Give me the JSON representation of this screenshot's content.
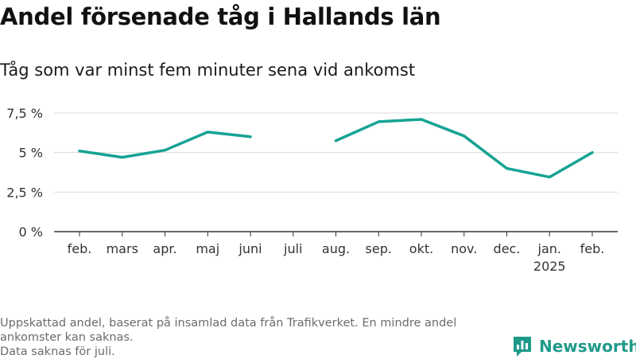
{
  "title": "Andel försenade tåg i Hallands län",
  "subtitle": "Tåg som var minst fem minuter sena vid ankomst",
  "footnote": {
    "line1": "Uppskattad andel, baserat på insamlad data från Trafikverket. En mindre andel ankomster kan saknas.",
    "line2": "Data saknas för juli."
  },
  "brand": {
    "name": "Newsworthy",
    "icon": "newsworthy-logo-icon",
    "color": "#1f9a8a"
  },
  "chart_data": {
    "type": "line",
    "categories": [
      "feb.",
      "mars",
      "apr.",
      "maj",
      "juni",
      "juli",
      "aug.",
      "sep.",
      "okt.",
      "nov.",
      "dec.",
      "jan.",
      "feb."
    ],
    "category_sublabels": [
      "",
      "",
      "",
      "",
      "",
      "",
      "",
      "",
      "",
      "",
      "",
      "2025",
      ""
    ],
    "series": [
      {
        "values": [
          5.1,
          4.7,
          5.15,
          6.3,
          6.0,
          null,
          5.75,
          6.95,
          7.1,
          6.05,
          4.0,
          3.45,
          5.0
        ],
        "color": "#16a394"
      }
    ],
    "yticks": [
      0,
      2.5,
      5,
      7.5
    ],
    "ytick_labels": [
      "0 %",
      "2,5 %",
      "5 %",
      "7,5 %"
    ],
    "ylim": [
      0,
      7.5
    ],
    "grid": true,
    "xlabel": "",
    "ylabel": ""
  }
}
